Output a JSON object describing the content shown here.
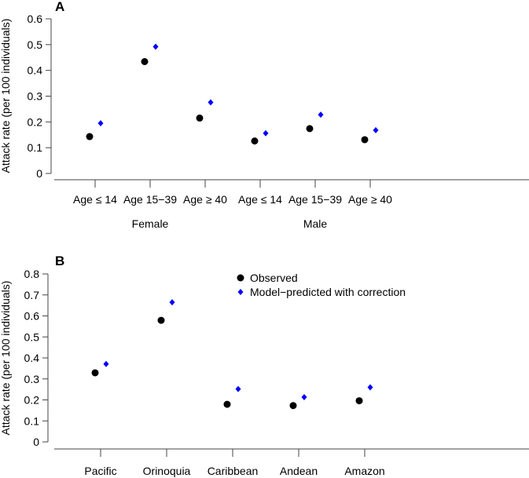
{
  "colors": {
    "observed": "#000000",
    "predicted": "#0000ff"
  },
  "chart_data": [
    {
      "type": "scatter",
      "panel_label": "A",
      "ylabel": "Attack rate (per 100 individuals)",
      "ylim": [
        0,
        0.6
      ],
      "yticks": [
        "0",
        "0.1",
        "0.2",
        "0.3",
        "0.4",
        "0.5",
        "0.6"
      ],
      "categories": [
        "Age ≤ 14",
        "Age 15−39",
        "Age ≥ 40",
        "Age ≤ 14",
        "Age 15−39",
        "Age ≥ 40"
      ],
      "groups": [
        {
          "label": "Female",
          "span": [
            0,
            2
          ]
        },
        {
          "label": "Male",
          "span": [
            3,
            5
          ]
        }
      ],
      "grid": false,
      "series": [
        {
          "key": "observed",
          "marker": "circle",
          "values": [
            0.143,
            0.434,
            0.215,
            0.126,
            0.174,
            0.131
          ]
        },
        {
          "key": "predicted",
          "marker": "diamond",
          "values": [
            0.195,
            0.492,
            0.276,
            0.156,
            0.228,
            0.168
          ]
        }
      ]
    },
    {
      "type": "scatter",
      "panel_label": "B",
      "ylabel": "Attack rate (per 100 individuals)",
      "ylim": [
        0,
        0.8
      ],
      "yticks": [
        "0",
        "0.1",
        "0.2",
        "0.3",
        "0.4",
        "0.5",
        "0.6",
        "0.7",
        "0.8"
      ],
      "categories": [
        "Pacific",
        "Orinoquia",
        "Caribbean",
        "Andean",
        "Amazon"
      ],
      "grid": false,
      "legend": {
        "placement": "top-right",
        "entries": [
          "Observed",
          "Model−predicted with correction"
        ]
      },
      "series": [
        {
          "key": "observed",
          "name": "Observed",
          "marker": "circle",
          "values": [
            0.329,
            0.579,
            0.179,
            0.173,
            0.196
          ]
        },
        {
          "key": "predicted",
          "name": "Model−predicted with correction",
          "marker": "diamond",
          "values": [
            0.371,
            0.665,
            0.252,
            0.213,
            0.26
          ]
        }
      ]
    }
  ]
}
